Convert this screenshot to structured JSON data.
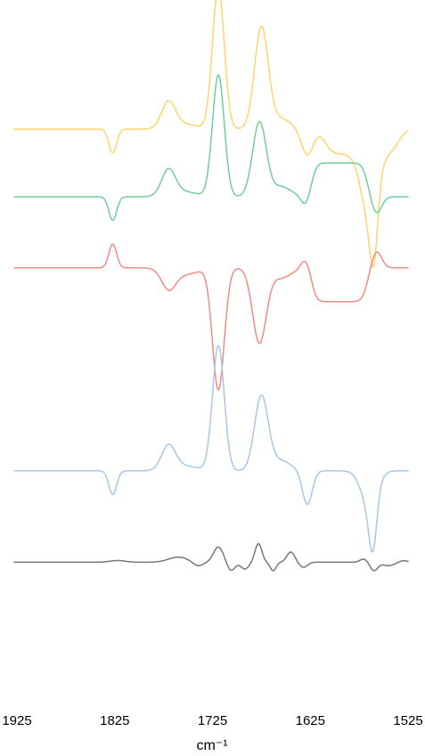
{
  "chart_data": {
    "type": "line",
    "title": "",
    "xlabel": "cm⁻¹",
    "ylabel": "",
    "xlim": [
      1925,
      1525
    ],
    "x_reversed": true,
    "x_ticks": [
      1925,
      1825,
      1725,
      1625,
      1525
    ],
    "x_tick_labels": [
      "1925",
      "1825",
      "1725",
      "1625",
      "1525"
    ],
    "grid": false,
    "legend": "none",
    "series": [
      {
        "color": "#ffd36e",
        "offset": 7.5,
        "peaks": [
          {
            "x": 1827,
            "amp": -0.7,
            "width": 4
          },
          {
            "x": 1770,
            "amp": 0.75,
            "width": 7
          },
          {
            "x": 1755,
            "amp": 0.15,
            "width": 14
          },
          {
            "x": 1719,
            "amp": 4.2,
            "width": 6
          },
          {
            "x": 1675,
            "amp": 3.0,
            "width": 7
          },
          {
            "x": 1655,
            "amp": 0.3,
            "width": 10
          },
          {
            "x": 1628,
            "amp": -0.75,
            "width": 6
          },
          {
            "x": 1565,
            "amp": -1.8,
            "width": 8
          },
          {
            "x": 1560,
            "amp": -1.8,
            "width": 4
          }
        ],
        "steps": [
          {
            "x": 1610,
            "amp": -0.75,
            "width": 4
          },
          {
            "x": 1535,
            "amp": 0.75,
            "width": 4
          }
        ]
      },
      {
        "color": "#6fcf97",
        "offset": 5.5,
        "peaks": [
          {
            "x": 1827,
            "amp": -0.7,
            "width": 4
          },
          {
            "x": 1770,
            "amp": 0.75,
            "width": 7
          },
          {
            "x": 1755,
            "amp": 0.15,
            "width": 14
          },
          {
            "x": 1719,
            "amp": 3.6,
            "width": 6
          },
          {
            "x": 1677,
            "amp": 2.2,
            "width": 7
          },
          {
            "x": 1655,
            "amp": 0.3,
            "width": 10
          },
          {
            "x": 1628,
            "amp": -0.75,
            "width": 5
          },
          {
            "x": 1560,
            "amp": -1.0,
            "width": 6
          }
        ],
        "steps": [
          {
            "x": 1630,
            "amp": 1.0,
            "width": 3
          },
          {
            "x": 1558,
            "amp": -1.0,
            "width": 3
          }
        ]
      },
      {
        "color": "#f28b82",
        "offset": 3.4,
        "peaks": [
          {
            "x": 1827,
            "amp": 0.7,
            "width": 4
          },
          {
            "x": 1770,
            "amp": -0.55,
            "width": 7
          },
          {
            "x": 1755,
            "amp": -0.2,
            "width": 14
          },
          {
            "x": 1719,
            "amp": -3.6,
            "width": 6
          },
          {
            "x": 1677,
            "amp": -2.2,
            "width": 7
          },
          {
            "x": 1655,
            "amp": -0.3,
            "width": 10
          },
          {
            "x": 1628,
            "amp": 0.75,
            "width": 5
          },
          {
            "x": 1560,
            "amp": 1.0,
            "width": 6
          }
        ],
        "steps": [
          {
            "x": 1630,
            "amp": -1.0,
            "width": 3
          },
          {
            "x": 1558,
            "amp": 1.0,
            "width": 3
          }
        ]
      },
      {
        "color": "#a8c6e8",
        "offset": -2.6,
        "peaks": [
          {
            "x": 1827,
            "amp": -0.7,
            "width": 4
          },
          {
            "x": 1770,
            "amp": 0.7,
            "width": 7
          },
          {
            "x": 1755,
            "amp": 0.15,
            "width": 14
          },
          {
            "x": 1719,
            "amp": 3.7,
            "width": 6
          },
          {
            "x": 1675,
            "amp": 2.2,
            "width": 7
          },
          {
            "x": 1655,
            "amp": 0.3,
            "width": 10
          },
          {
            "x": 1628,
            "amp": -1.0,
            "width": 5
          },
          {
            "x": 1565,
            "amp": -1.0,
            "width": 8
          },
          {
            "x": 1561,
            "amp": -1.5,
            "width": 4
          }
        ],
        "steps": []
      },
      {
        "color": "#777777",
        "offset": -5.3,
        "peaks": [
          {
            "x": 1822,
            "amp": 0.05,
            "width": 8
          },
          {
            "x": 1760,
            "amp": 0.15,
            "width": 10
          },
          {
            "x": 1740,
            "amp": -0.12,
            "width": 5
          },
          {
            "x": 1719,
            "amp": 0.45,
            "width": 5
          },
          {
            "x": 1706,
            "amp": -0.25,
            "width": 4
          },
          {
            "x": 1692,
            "amp": -0.2,
            "width": 4
          },
          {
            "x": 1678,
            "amp": 0.55,
            "width": 3.5
          },
          {
            "x": 1663,
            "amp": -0.25,
            "width": 3
          },
          {
            "x": 1645,
            "amp": 0.3,
            "width": 4
          },
          {
            "x": 1632,
            "amp": -0.15,
            "width": 4
          },
          {
            "x": 1570,
            "amp": 0.1,
            "width": 4
          },
          {
            "x": 1560,
            "amp": -0.25,
            "width": 4
          },
          {
            "x": 1545,
            "amp": -0.1,
            "width": 6
          },
          {
            "x": 1530,
            "amp": 0.05,
            "width": 4
          }
        ],
        "steps": []
      }
    ]
  }
}
